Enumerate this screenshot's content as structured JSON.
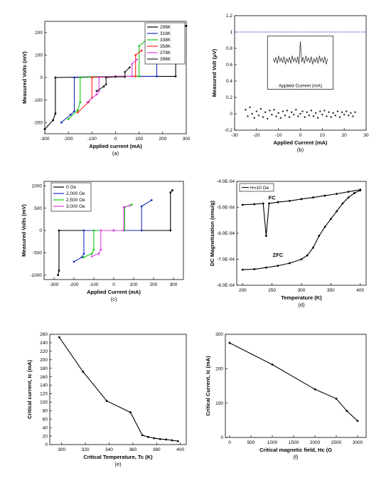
{
  "chart_data": [
    {
      "id": "a",
      "type": "line",
      "caption": "(a)",
      "xlabel": "Applied current (mA)",
      "ylabel": "Measured Volts (mV)",
      "xlim": [
        -300,
        300
      ],
      "ylim": [
        -250,
        250
      ],
      "xticks": [
        -300,
        -200,
        -100,
        0,
        100,
        200,
        300
      ],
      "yticks": [
        -200,
        -100,
        0,
        100,
        200
      ],
      "legend_position": "top-right",
      "series": [
        {
          "name": "298K",
          "color": "#000000",
          "x": [
            -300,
            -265,
            -255,
            -255,
            0,
            255,
            255,
            270,
            300
          ],
          "y": [
            -230,
            -190,
            -160,
            0,
            5,
            5,
            190,
            210,
            230
          ]
        },
        {
          "name": "318K",
          "color": "#1f2fbf",
          "x": [
            -230,
            -190,
            -175,
            -175,
            0,
            175,
            175,
            200,
            230
          ],
          "y": [
            -200,
            -165,
            -150,
            0,
            5,
            5,
            175,
            195,
            210
          ]
        },
        {
          "name": "338K",
          "color": "#14c814",
          "x": [
            -200,
            -160,
            -150,
            -150,
            0,
            100,
            100,
            150,
            180
          ],
          "y": [
            -185,
            -145,
            -110,
            0,
            5,
            5,
            140,
            185,
            200
          ]
        },
        {
          "name": "358K",
          "color": "#ff2020",
          "x": [
            -160,
            -115,
            -100,
            -100,
            0,
            85,
            85,
            110
          ],
          "y": [
            -155,
            -110,
            -90,
            0,
            5,
            5,
            100,
            120
          ]
        },
        {
          "name": "378K",
          "color": "#e040e0",
          "x": [
            -120,
            -80,
            -70,
            -70,
            0,
            70,
            70,
            90
          ],
          "y": [
            -110,
            -75,
            -60,
            0,
            5,
            5,
            60,
            80
          ]
        },
        {
          "name": "398K",
          "color": "#202020",
          "x": [
            -80,
            -50,
            -40,
            -40,
            0,
            40,
            40,
            60
          ],
          "y": [
            -60,
            -40,
            -30,
            0,
            3,
            3,
            25,
            45
          ]
        }
      ]
    },
    {
      "id": "b",
      "type": "scatter",
      "caption": "(b)",
      "xlabel": "Applied Current (mA)",
      "ylabel": "Measured Volt (μV)",
      "xlim": [
        -30,
        30
      ],
      "ylim": [
        -0.2,
        1.2
      ],
      "xticks": [
        -30,
        -20,
        -10,
        0,
        10,
        20,
        30
      ],
      "yticks": [
        -0.2,
        0.0,
        0.2,
        0.4,
        0.6,
        0.8,
        1.0,
        1.2
      ],
      "reference_line_y": 1.0,
      "inset_xlabel": "Applied Current (mA)",
      "scatter_points": [
        [
          -25,
          0.05
        ],
        [
          -24,
          -0.03
        ],
        [
          -23,
          0.08
        ],
        [
          -22,
          0.0
        ],
        [
          -21,
          -0.05
        ],
        [
          -20,
          0.03
        ],
        [
          -19,
          -0.02
        ],
        [
          -18,
          0.06
        ],
        [
          -17,
          -0.04
        ],
        [
          -16,
          0.02
        ],
        [
          -15,
          -0.06
        ],
        [
          -14,
          0.04
        ],
        [
          -13,
          -0.01
        ],
        [
          -12,
          0.05
        ],
        [
          -11,
          -0.03
        ],
        [
          -10,
          0.01
        ],
        [
          -9,
          -0.05
        ],
        [
          -8,
          0.03
        ],
        [
          -7,
          -0.02
        ],
        [
          -6,
          0.04
        ],
        [
          -5,
          -0.04
        ],
        [
          -4,
          0.02
        ],
        [
          -3,
          -0.01
        ],
        [
          -2,
          0.05
        ],
        [
          -1,
          -0.03
        ],
        [
          0,
          0.0
        ],
        [
          1,
          0.03
        ],
        [
          2,
          -0.04
        ],
        [
          3,
          0.02
        ],
        [
          4,
          -0.02
        ],
        [
          5,
          0.04
        ],
        [
          6,
          -0.03
        ],
        [
          7,
          0.01
        ],
        [
          8,
          -0.05
        ],
        [
          9,
          0.03
        ],
        [
          10,
          -0.01
        ],
        [
          11,
          0.04
        ],
        [
          12,
          -0.03
        ],
        [
          13,
          0.02
        ],
        [
          14,
          -0.04
        ],
        [
          15,
          0.01
        ],
        [
          16,
          -0.02
        ],
        [
          17,
          0.03
        ],
        [
          18,
          -0.04
        ],
        [
          19,
          0.02
        ],
        [
          20,
          -0.01
        ],
        [
          21,
          0.03
        ],
        [
          22,
          -0.02
        ],
        [
          23,
          0.01
        ],
        [
          24,
          -0.03
        ],
        [
          25,
          0.02
        ]
      ]
    },
    {
      "id": "c",
      "type": "line",
      "caption": "(c)",
      "xlabel": "Applied Current (mA)",
      "ylabel": "Measured Volts (mV)",
      "xlim": [
        -350,
        350
      ],
      "ylim": [
        -1100,
        1100
      ],
      "xticks": [
        -300,
        -200,
        -100,
        0,
        100,
        200,
        300
      ],
      "yticks": [
        -1000,
        -500,
        0,
        500,
        1000
      ],
      "legend_position": "top-left",
      "series": [
        {
          "name": "0 Oe",
          "color": "#000000",
          "x": [
            -280,
            -275,
            -275,
            0,
            285,
            285,
            295
          ],
          "y": [
            -1000,
            -900,
            0,
            0,
            0,
            850,
            900
          ]
        },
        {
          "name": "2,000 Oe",
          "color": "#1f2fbf",
          "x": [
            -200,
            -160,
            -150,
            -150,
            0,
            140,
            140,
            190
          ],
          "y": [
            -700,
            -600,
            -520,
            0,
            0,
            0,
            540,
            680
          ]
        },
        {
          "name": "2,500 Oe",
          "color": "#14c814",
          "x": [
            -150,
            -110,
            -100,
            -100,
            0,
            55,
            55,
            90
          ],
          "y": [
            -600,
            -520,
            -430,
            0,
            0,
            0,
            520,
            580
          ]
        },
        {
          "name": "3,000 Oe",
          "color": "#e040e0",
          "x": [
            -110,
            -75,
            -65,
            -65,
            0,
            50,
            50,
            80
          ],
          "y": [
            -580,
            -520,
            -430,
            0,
            0,
            0,
            520,
            560
          ]
        }
      ]
    },
    {
      "id": "d",
      "type": "line",
      "caption": "(d)",
      "xlabel": "Temperature (K)",
      "ylabel": "DC Magnetization (emu/g)",
      "xlim": [
        190,
        410
      ],
      "ylim": [
        -0.0008,
        -0.0004
      ],
      "xticks": [
        200,
        250,
        300,
        350,
        400
      ],
      "ytick_labels": [
        "-4.0E-04",
        "-5.0E-04",
        "-6.0E-04",
        "-7.0E-04",
        "-8.0E-04"
      ],
      "yticks": [
        -0.0004,
        -0.0005,
        -0.0006,
        -0.0007,
        -0.0008
      ],
      "legend": "H=10 Oe",
      "annotations": [
        "FC",
        "ZFC"
      ],
      "series": [
        {
          "name": "FC",
          "color": "#000000",
          "x": [
            200,
            220,
            235,
            240,
            245,
            260,
            280,
            300,
            320,
            340,
            360,
            380,
            400
          ],
          "y": [
            -0.00049,
            -0.000488,
            -0.000485,
            -0.00061,
            -0.000485,
            -0.00048,
            -0.000475,
            -0.000468,
            -0.000462,
            -0.000455,
            -0.000448,
            -0.00044,
            -0.000432
          ]
        },
        {
          "name": "ZFC",
          "color": "#000000",
          "x": [
            200,
            220,
            240,
            260,
            280,
            300,
            310,
            320,
            330,
            340,
            350,
            360,
            370,
            380,
            390,
            400
          ],
          "y": [
            -0.00074,
            -0.000738,
            -0.000732,
            -0.000725,
            -0.000715,
            -0.0007,
            -0.000685,
            -0.000655,
            -0.00061,
            -0.000575,
            -0.000545,
            -0.000515,
            -0.000485,
            -0.000462,
            -0.000445,
            -0.000435
          ]
        }
      ]
    },
    {
      "id": "e",
      "type": "line",
      "caption": "(e)",
      "xlabel": "Critical Temperature, Tc (K)",
      "ylabel": "Critical current, Ic (mA)",
      "xlim": [
        290,
        405
      ],
      "ylim": [
        0,
        260
      ],
      "xticks": [
        300,
        320,
        340,
        360,
        380,
        400
      ],
      "yticks": [
        0,
        20,
        40,
        60,
        80,
        100,
        120,
        140,
        160,
        180,
        200,
        220,
        240,
        260
      ],
      "series": [
        {
          "name": "",
          "color": "#000000",
          "x": [
            298,
            318,
            338,
            358,
            368,
            373,
            378,
            383,
            388,
            393,
            398
          ],
          "y": [
            253,
            172,
            103,
            76,
            22,
            18,
            15,
            13,
            12,
            10,
            8
          ]
        }
      ]
    },
    {
      "id": "f",
      "type": "line",
      "caption": "(f)",
      "xlabel": "Critical magnetic field, Hc (G",
      "ylabel": "Critical Current, Ic (mA)",
      "xlim": [
        -100,
        3200
      ],
      "ylim": [
        0,
        300
      ],
      "xticks": [
        0,
        500,
        1000,
        1500,
        2000,
        2500,
        3000
      ],
      "yticks": [
        0,
        100,
        200,
        300
      ],
      "series": [
        {
          "name": "",
          "color": "#000000",
          "x": [
            0,
            1000,
            2000,
            2500,
            2750,
            3000
          ],
          "y": [
            275,
            212,
            140,
            113,
            77,
            48
          ]
        }
      ]
    }
  ]
}
